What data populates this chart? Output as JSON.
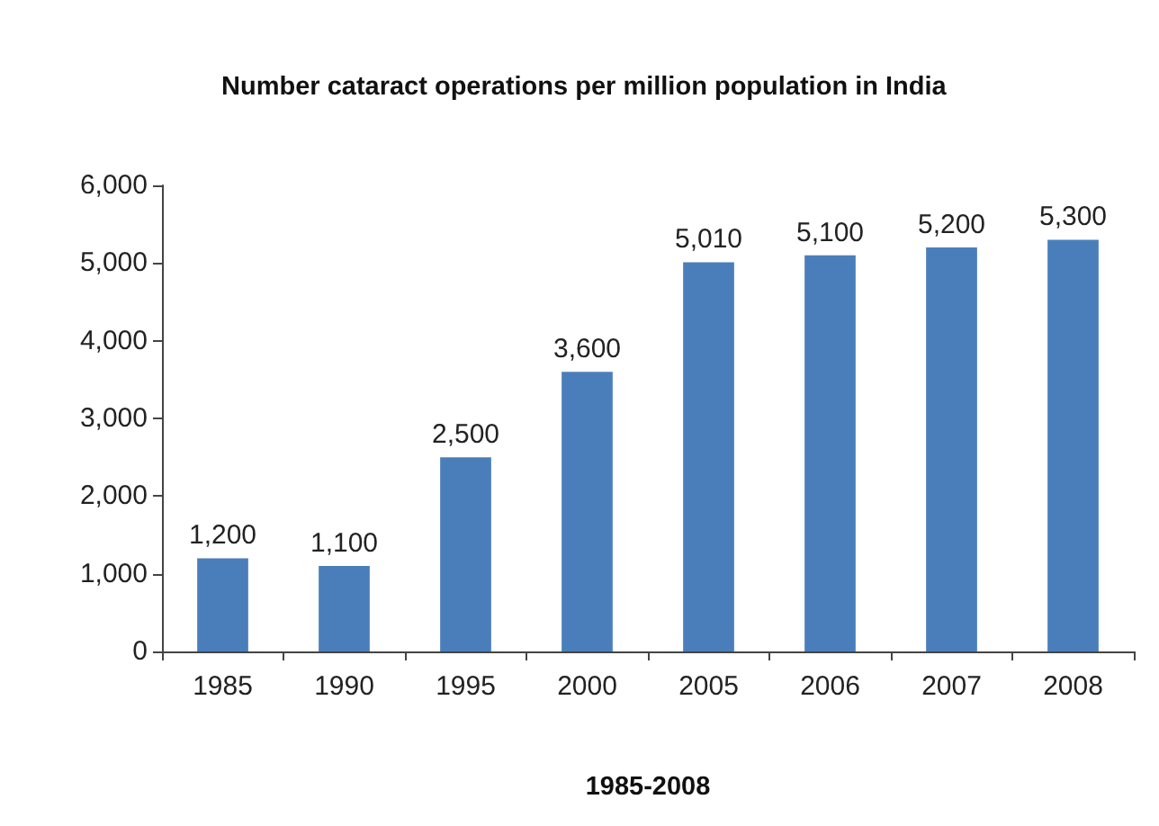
{
  "chart_data": {
    "type": "bar",
    "title": "Number cataract operations per million population in India",
    "xlabel": "1985-2008",
    "categories": [
      "1985",
      "1990",
      "1995",
      "2000",
      "2005",
      "2006",
      "2007",
      "2008"
    ],
    "values": [
      1200,
      1100,
      2500,
      3600,
      5010,
      5100,
      5200,
      5300
    ],
    "value_labels": [
      "1,200",
      "1,100",
      "2,500",
      "3,600",
      "5,010",
      "5,100",
      "5,200",
      "5,300"
    ],
    "color": "#4a7ebb",
    "ylim": [
      0,
      6000
    ],
    "yticks": [
      {
        "value": 0,
        "label": "0"
      },
      {
        "value": 1000,
        "label": "1,000"
      },
      {
        "value": 2000,
        "label": "2,000"
      },
      {
        "value": 3000,
        "label": "3,000"
      },
      {
        "value": 4000,
        "label": "4,000"
      },
      {
        "value": 5000,
        "label": "5,000"
      },
      {
        "value": 6000,
        "label": "6,000"
      }
    ],
    "grid": false
  }
}
